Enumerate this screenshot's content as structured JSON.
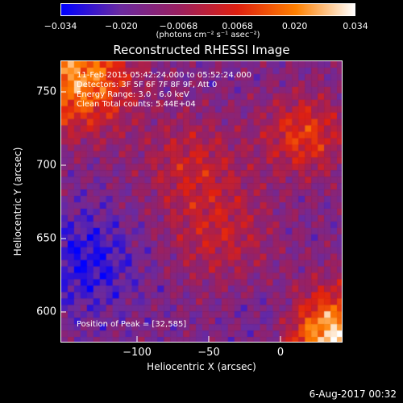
{
  "colorbar": {
    "ticks": [
      "−0.034",
      "−0.020",
      "−0.0068",
      "0.0068",
      "0.020",
      "0.034"
    ],
    "tick_values": [
      -0.034,
      -0.02,
      -0.0068,
      0.0068,
      0.02,
      0.034
    ],
    "label": "(photons cm⁻² s⁻¹ asec⁻²)",
    "colors": [
      "#0000ff",
      "#6a2aa0",
      "#9a2060",
      "#e02010",
      "#ff8000",
      "#ffffff"
    ]
  },
  "chart": {
    "title": "Reconstructed RHESSI Image",
    "time_range": "11-Feb-2015 05:42:24.000 to 05:52:24.000",
    "detectors": "Detectors: 3F 5F 6F 7F 8F 9F, Att 0",
    "energy_range": "Energy Range: 3.0 - 6.0 keV",
    "method_counts": "Clean     Total counts: 5.44E+04",
    "peak": "Position of Peak = [32,585]",
    "xlabel": "Heliocentric X (arcsec)",
    "ylabel": "Heliocentric Y (arcsec)",
    "date": "6-Aug-2017 00:32"
  },
  "chart_data": {
    "type": "heatmap",
    "title": "Reconstructed RHESSI Image",
    "xlabel": "Heliocentric X (arcsec)",
    "ylabel": "Heliocentric Y (arcsec)",
    "xlim": [
      -147,
      40
    ],
    "ylim": [
      580,
      770
    ],
    "xticks": [
      "−100",
      "−50",
      "0"
    ],
    "xtick_values": [
      -100,
      -50,
      0
    ],
    "yticks": [
      "750",
      "700",
      "650",
      "600"
    ],
    "ytick_values": [
      750,
      700,
      650,
      600
    ],
    "colorscale_range": [
      -0.034,
      0.034
    ],
    "peak_position": [
      32,
      585
    ]
  }
}
